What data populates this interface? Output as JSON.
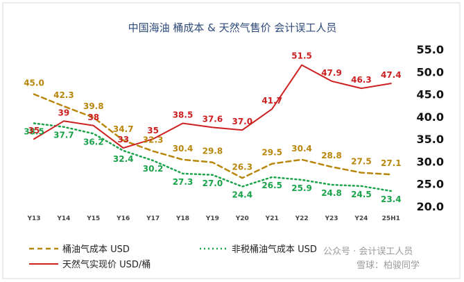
{
  "chart_data": {
    "type": "line",
    "title": "中国海油 桶成本 & 天然气售价 会计误工人员",
    "categories": [
      "Y13",
      "Y14",
      "Y15",
      "Y16",
      "Y17",
      "Y18",
      "Y19",
      "Y20",
      "Y21",
      "Y22",
      "Y23",
      "Y24",
      "25H1"
    ],
    "y_ticks": [
      "55.0",
      "50.0",
      "45.0",
      "40.0",
      "35.0",
      "30.0",
      "25.0",
      "20.0"
    ],
    "ylim": [
      20,
      55
    ],
    "grid": false,
    "legend_position": "bottom",
    "series": [
      {
        "name": "桶油气成本 USD",
        "color": "#b8860b",
        "style": "dashed",
        "values": [
          45.0,
          42.3,
          39.8,
          34.7,
          32.3,
          30.4,
          29.8,
          26.3,
          29.5,
          30.4,
          28.8,
          27.5,
          27.1
        ],
        "labels": [
          "45.0",
          "42.3",
          "39.8",
          "34.7",
          "32.3",
          "30.4",
          "29.8",
          "26.3",
          "29.5",
          "30.4",
          "28.8",
          "27.5",
          "27.1"
        ]
      },
      {
        "name": "非税桶油气成本 USD",
        "color": "#1aa34a",
        "style": "dotted",
        "values": [
          38.5,
          37.7,
          36.2,
          32.4,
          30.2,
          27.3,
          27.0,
          24.4,
          26.5,
          25.9,
          24.8,
          24.5,
          23.4
        ],
        "labels": [
          "38.5",
          "37.7",
          "36.2",
          "32.4",
          "30.2",
          "27.3",
          "27.0",
          "24.4",
          "26.5",
          "25.9",
          "24.8",
          "24.5",
          "23.4"
        ]
      },
      {
        "name": "天然气实现价 USD/桶",
        "color": "#cc1f1f",
        "style": "solid",
        "values": [
          35,
          39,
          38,
          33,
          35,
          38.5,
          37.6,
          37.0,
          41.7,
          51.5,
          47.9,
          46.3,
          47.4
        ],
        "labels": [
          "35",
          "39",
          "38",
          "33",
          "35",
          "38.5",
          "37.6",
          "37.0",
          "41.7",
          "51.5",
          "47.9",
          "46.3",
          "47.4"
        ]
      }
    ]
  },
  "watermark": {
    "line1": "公众号 · 会计误工人员",
    "line2": "雪球：柏骏同学"
  }
}
